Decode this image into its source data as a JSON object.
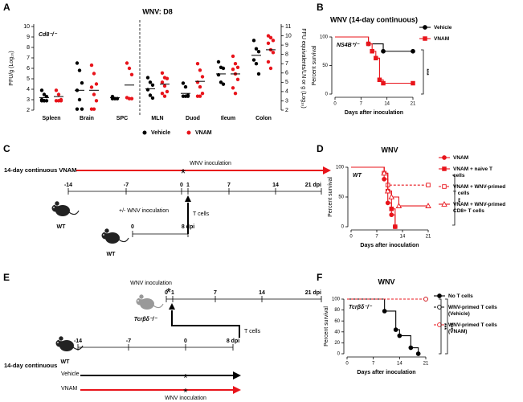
{
  "panel_labels": [
    "A",
    "B",
    "C",
    "D",
    "E",
    "F"
  ],
  "chart_data": [
    {
      "type": "dot",
      "title": "WNV: D8",
      "annotation": "Cd8⁻/⁻",
      "ylabel": "PFU/g (Log₁₀)",
      "y2label": "FFU equivalents/LN or g (Log₁₀)",
      "categories": [
        "Spleen",
        "Brain",
        "SPC",
        "MLN",
        "Duod",
        "Ileum",
        "Colon"
      ],
      "category_axis": [
        "y",
        "y",
        "y",
        "y2",
        "y2",
        "y2",
        "y2"
      ],
      "ylim": [
        2,
        10
      ],
      "yticks": [
        2,
        3,
        4,
        5,
        6,
        7,
        8,
        9,
        10
      ],
      "y2lim": [
        2,
        11
      ],
      "y2ticks": [
        2,
        3,
        4,
        5,
        6,
        7,
        8,
        9,
        10,
        11
      ],
      "series": [
        {
          "name": "Vehicle",
          "color": "#000000",
          "values": [
            [
              3.9,
              3.5,
              3.3,
              3.0,
              2.9,
              2.9,
              2.9,
              2.9
            ],
            [
              6.5,
              5.8,
              4.6,
              3.9,
              3.0,
              2.1,
              2.1
            ],
            [
              3.3,
              3.1,
              3.1,
              3.1
            ],
            [
              5.5,
              5.0,
              4.7,
              4.2,
              3.6,
              3.3
            ],
            [
              4.9,
              4.5,
              3.6,
              3.5,
              3.5,
              3.5
            ],
            [
              7.2,
              6.6,
              6.5,
              5.8,
              5.0,
              4.8
            ],
            [
              9.5,
              8.6,
              8.3,
              7.4,
              7.0,
              5.9
            ]
          ],
          "means": [
            3.2,
            3.9,
            3.2,
            4.3,
            3.8,
            5.9,
            7.9
          ]
        },
        {
          "name": "VNAM",
          "color": "#e8141b",
          "values": [
            [
              3.9,
              3.5,
              3.0,
              2.9,
              2.9,
              2.9
            ],
            [
              6.3,
              5.5,
              4.5,
              4.2,
              3.5,
              2.9,
              2.1,
              2.1
            ],
            [
              6.5,
              6.0,
              5.4,
              3.2,
              3.1,
              3.1
            ],
            [
              6.0,
              5.5,
              5.4,
              5.0,
              4.6,
              4.0,
              3.8,
              3.5
            ],
            [
              7.0,
              6.3,
              5.6,
              5.0,
              4.5,
              3.8,
              3.5,
              3.5
            ],
            [
              7.8,
              7.0,
              6.6,
              6.4,
              5.9,
              5.3,
              4.4,
              3.8
            ],
            [
              10.0,
              9.8,
              9.5,
              9.2,
              8.5,
              8.2,
              7.2,
              6.5
            ]
          ],
          "means": [
            3.3,
            3.9,
            4.4,
            4.8,
            5.1,
            5.9,
            8.5
          ]
        }
      ]
    },
    {
      "type": "survival",
      "title": "WNV (14-day continuous)",
      "annotation": "NS4B⁺/⁻",
      "xlabel": "Days after inoculation",
      "ylabel": "Percent survival",
      "xlim": [
        0,
        21
      ],
      "xticks": [
        0,
        7,
        14,
        21
      ],
      "ylim": [
        0,
        100
      ],
      "yticks": [
        0,
        50,
        100
      ],
      "significance": [
        "***"
      ],
      "series": [
        {
          "name": "Vehicle",
          "color": "#000000",
          "marker": "circle",
          "filled": true,
          "dashed": false,
          "x": [
            0,
            9,
            13,
            21
          ],
          "values": [
            100,
            88,
            75,
            75
          ]
        },
        {
          "name": "VNAM",
          "color": "#e8141b",
          "marker": "square",
          "filled": true,
          "dashed": false,
          "x": [
            0,
            9,
            10,
            11,
            12,
            13,
            21
          ],
          "values": [
            100,
            88,
            75,
            63,
            25,
            19,
            19
          ]
        }
      ]
    },
    {
      "type": "survival",
      "title": "WNV",
      "annotation": "WT",
      "xlabel": "Days after inoculation",
      "ylabel": "Percent survival",
      "xlim": [
        0,
        21
      ],
      "xticks": [
        0,
        7,
        14,
        21
      ],
      "ylim": [
        0,
        100
      ],
      "yticks": [
        0,
        50,
        100
      ],
      "significance": [
        "**"
      ],
      "series": [
        {
          "name": "VNAM",
          "color": "#e8141b",
          "marker": "circle",
          "filled": true,
          "dashed": false,
          "x": [
            0,
            9,
            10,
            11,
            12
          ],
          "values": [
            100,
            80,
            40,
            20,
            0
          ]
        },
        {
          "name": "VNAM + naive T cells",
          "color": "#e8141b",
          "marker": "square",
          "filled": true,
          "dashed": false,
          "x": [
            0,
            9,
            10,
            11,
            12
          ],
          "values": [
            100,
            90,
            60,
            30,
            0
          ]
        },
        {
          "name": "VNAM + WNV-primed T cells",
          "color": "#e8141b",
          "marker": "square",
          "filled": false,
          "dashed": true,
          "x": [
            0,
            9,
            10,
            21
          ],
          "values": [
            100,
            90,
            70,
            70
          ]
        },
        {
          "name": "VNAM + WNV-primed CD8+ T cells",
          "color": "#e8141b",
          "marker": "triangle",
          "filled": false,
          "dashed": false,
          "x": [
            0,
            9,
            10,
            11,
            13,
            21
          ],
          "values": [
            100,
            90,
            60,
            50,
            35,
            35
          ]
        }
      ]
    },
    {
      "type": "survival",
      "title": "WNV",
      "annotation": "Tcrβδ⁻/⁻",
      "xlabel": "Days after inoculation",
      "ylabel": "Percent survival",
      "xlim": [
        0,
        21
      ],
      "xticks": [
        0,
        7,
        14,
        21
      ],
      "ylim": [
        0,
        100
      ],
      "yticks": [
        0,
        20,
        40,
        60,
        80,
        100
      ],
      "significance": [
        "***",
        "***"
      ],
      "series": [
        {
          "name": "No T cells",
          "color": "#000000",
          "marker": "circle",
          "filled": true,
          "dashed": false,
          "x": [
            0,
            10,
            13,
            14,
            17,
            19
          ],
          "values": [
            100,
            78,
            44,
            33,
            11,
            0
          ]
        },
        {
          "name": "WNV-primed T cells (Vehicle)",
          "color": "#000000",
          "marker": "circle",
          "filled": false,
          "dashed": true,
          "x": [
            0,
            21
          ],
          "values": [
            100,
            100
          ]
        },
        {
          "name": "WNV-primed T cells (VNAM)",
          "color": "#e8141b",
          "marker": "circle",
          "filled": false,
          "dashed": true,
          "x": [
            0,
            21
          ],
          "values": [
            100,
            100
          ]
        }
      ]
    }
  ],
  "diagrams": [
    {
      "vnam_label": "14-day continuous VNAM",
      "inoculation": "WNV inoculation",
      "asterisk": "*",
      "timeline": [
        "-14",
        "-7",
        "0",
        "1",
        "7",
        "14",
        "21 dpi"
      ],
      "host": "WT",
      "transfer": "T cells",
      "donor_inoculation": "+/- WNV inoculation",
      "donor_timeline": [
        "0",
        "8 dpi"
      ],
      "donor": "WT"
    },
    {
      "inoculation": "WNV inoculation",
      "asterisk": "*",
      "recipient_timeline": [
        "0",
        "1",
        "7",
        "14",
        "21 dpi"
      ],
      "recipient": "Tcrβδ⁻/⁻",
      "transfer": "T cells",
      "donor": "WT",
      "donor_timeline": [
        "-14",
        "-7",
        "0",
        "8 dpi"
      ],
      "treatment": "14-day continuous",
      "groups": [
        "Vehicle",
        "VNAM"
      ],
      "inoculation_bottom": "WNV inoculation"
    }
  ]
}
